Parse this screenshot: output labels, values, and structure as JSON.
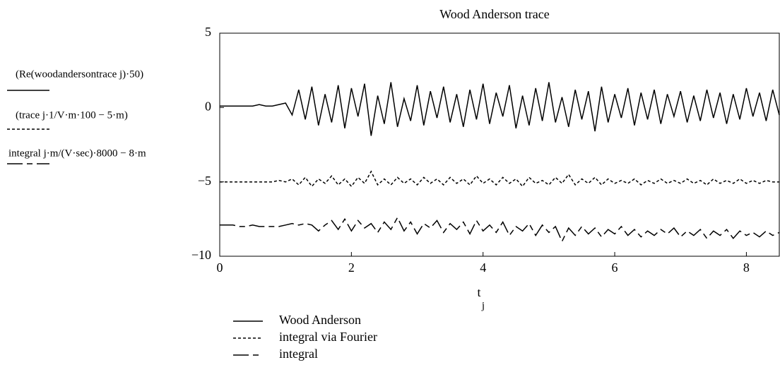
{
  "chart_data": {
    "type": "line",
    "title": "Wood Anderson trace",
    "x_label": {
      "base": "t",
      "subscript": "j"
    },
    "y_labels": [
      "(Re(woodandersontrace j)·50)",
      "(trace j·1/V·m·100 − 5·m)",
      "integral j·m/(V·sec)·8000 − 8·m"
    ],
    "xlim": [
      0,
      8.5
    ],
    "xticks": [
      0,
      2,
      4,
      6,
      8
    ],
    "ylim": [
      -10,
      5
    ],
    "yticks": [
      {
        "value": -10,
        "label": "−10"
      },
      {
        "value": -5,
        "label": "−5"
      },
      0,
      5
    ],
    "x": [
      0,
      0.1,
      0.2,
      0.3,
      0.4,
      0.5,
      0.6,
      0.7,
      0.8,
      0.9,
      1.0,
      1.1,
      1.2,
      1.3,
      1.4,
      1.5,
      1.6,
      1.7,
      1.8,
      1.9,
      2.0,
      2.1,
      2.2,
      2.3,
      2.4,
      2.5,
      2.6,
      2.7,
      2.8,
      2.9,
      3.0,
      3.1,
      3.2,
      3.3,
      3.4,
      3.5,
      3.6,
      3.7,
      3.8,
      3.9,
      4.0,
      4.1,
      4.2,
      4.3,
      4.4,
      4.5,
      4.6,
      4.7,
      4.8,
      4.9,
      5.0,
      5.1,
      5.2,
      5.3,
      5.4,
      5.5,
      5.6,
      5.7,
      5.8,
      5.9,
      6.0,
      6.1,
      6.2,
      6.3,
      6.4,
      6.5,
      6.6,
      6.7,
      6.8,
      6.9,
      7.0,
      7.1,
      7.2,
      7.3,
      7.4,
      7.5,
      7.6,
      7.7,
      7.8,
      7.9,
      8.0,
      8.1,
      8.2,
      8.3,
      8.4,
      8.5
    ],
    "series": [
      {
        "name": "Wood Anderson",
        "color": "#000000",
        "dash": "solid",
        "values": [
          0.1,
          0.1,
          0.1,
          0.1,
          0.1,
          0.1,
          0.2,
          0.1,
          0.1,
          0.2,
          0.3,
          -0.5,
          1.2,
          -0.8,
          1.4,
          -1.2,
          0.9,
          -1.0,
          1.5,
          -1.4,
          1.3,
          -0.6,
          1.6,
          -1.9,
          0.8,
          -1.1,
          1.7,
          -1.3,
          0.6,
          -0.9,
          1.5,
          -1.2,
          1.1,
          -0.7,
          1.4,
          -1.0,
          0.9,
          -1.3,
          1.2,
          -0.8,
          1.6,
          -1.1,
          1.0,
          -0.6,
          1.5,
          -1.4,
          0.8,
          -1.2,
          1.3,
          -0.9,
          1.7,
          -1.0,
          0.7,
          -1.3,
          1.2,
          -0.8,
          1.1,
          -1.6,
          1.4,
          -1.0,
          0.9,
          -0.7,
          1.3,
          -1.2,
          1.0,
          -0.8,
          1.2,
          -1.1,
          0.9,
          -0.6,
          1.1,
          -1.0,
          0.8,
          -0.9,
          1.2,
          -0.7,
          1.0,
          -1.1,
          0.9,
          -0.8,
          1.3,
          -0.6,
          1.0,
          -0.9,
          1.2,
          -0.5
        ]
      },
      {
        "name": "integral via Fourier",
        "color": "#000000",
        "dash": "dotted",
        "values": [
          -5,
          -5,
          -5,
          -5,
          -5,
          -5,
          -5,
          -5,
          -5,
          -4.9,
          -5.0,
          -4.8,
          -5.2,
          -4.7,
          -5.3,
          -4.8,
          -5.1,
          -4.6,
          -5.2,
          -4.8,
          -5.3,
          -4.7,
          -5.1,
          -4.3,
          -5.2,
          -4.8,
          -5.2,
          -4.7,
          -5.1,
          -4.8,
          -5.2,
          -4.7,
          -5.1,
          -4.8,
          -5.2,
          -4.7,
          -5.1,
          -4.8,
          -5.2,
          -4.6,
          -5.1,
          -4.8,
          -5.2,
          -4.7,
          -5.1,
          -4.8,
          -5.3,
          -4.7,
          -5.1,
          -4.9,
          -5.2,
          -4.7,
          -5.1,
          -4.5,
          -5.2,
          -4.8,
          -5.1,
          -4.7,
          -5.2,
          -4.8,
          -5.1,
          -4.9,
          -5.1,
          -4.8,
          -5.2,
          -4.9,
          -5.1,
          -4.8,
          -5.1,
          -4.9,
          -5.1,
          -4.8,
          -5.1,
          -4.9,
          -5.2,
          -4.8,
          -5.1,
          -4.9,
          -5.1,
          -4.8,
          -5.1,
          -4.9,
          -5.1,
          -4.9,
          -5.0,
          -5.0
        ]
      },
      {
        "name": "integral",
        "color": "#000000",
        "dash": "dashed",
        "values": [
          -7.9,
          -7.9,
          -7.9,
          -8.0,
          -8.0,
          -7.9,
          -8.0,
          -8.0,
          -8.0,
          -8.0,
          -7.9,
          -7.8,
          -7.9,
          -7.8,
          -7.9,
          -8.3,
          -7.9,
          -7.6,
          -8.2,
          -7.5,
          -8.3,
          -7.6,
          -8.1,
          -7.8,
          -8.4,
          -7.7,
          -8.2,
          -7.4,
          -8.3,
          -7.7,
          -8.5,
          -7.8,
          -8.1,
          -7.6,
          -8.4,
          -7.8,
          -8.2,
          -7.7,
          -8.5,
          -7.6,
          -8.3,
          -7.9,
          -8.4,
          -7.7,
          -8.6,
          -8.0,
          -8.3,
          -7.8,
          -8.6,
          -7.9,
          -8.4,
          -8.0,
          -9.0,
          -8.1,
          -8.6,
          -8.0,
          -8.5,
          -8.1,
          -8.7,
          -8.2,
          -8.5,
          -8.0,
          -8.6,
          -8.2,
          -8.7,
          -8.3,
          -8.6,
          -8.2,
          -8.5,
          -8.1,
          -8.7,
          -8.3,
          -8.6,
          -8.2,
          -8.8,
          -8.3,
          -8.6,
          -8.2,
          -8.8,
          -8.3,
          -8.6,
          -8.4,
          -8.7,
          -8.3,
          -8.6,
          -8.4
        ]
      }
    ]
  }
}
